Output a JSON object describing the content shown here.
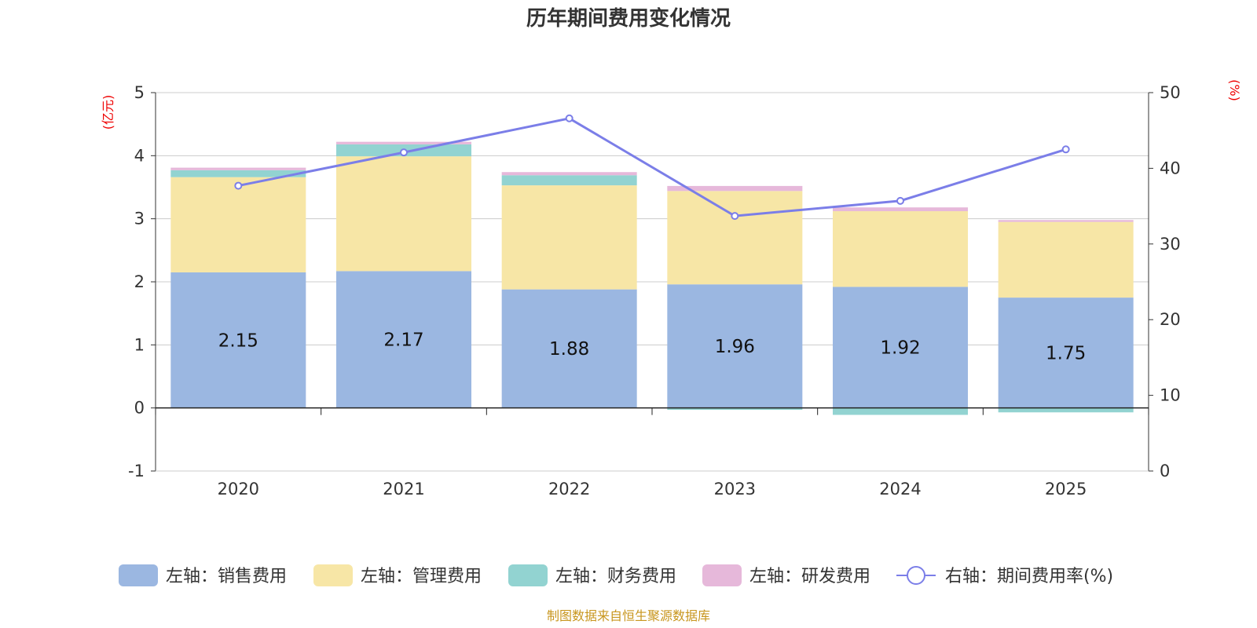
{
  "chart_data": {
    "type": "bar",
    "title": "历年期间费用变化情况",
    "categories": [
      "2020",
      "2021",
      "2022",
      "2023",
      "2024",
      "2025"
    ],
    "left_axis": {
      "unit": "(亿元)",
      "ylim": [
        -1,
        5
      ],
      "ticks": [
        -1,
        0,
        1,
        2,
        3,
        4,
        5
      ]
    },
    "right_axis": {
      "unit": "(%)",
      "ylim": [
        0,
        50
      ],
      "ticks": [
        0,
        10,
        20,
        30,
        40,
        50
      ]
    },
    "series": [
      {
        "name": "左轴：销售费用",
        "type": "bar",
        "color": "#9bb7e1",
        "values": [
          2.15,
          2.17,
          1.88,
          1.96,
          1.92,
          1.75
        ]
      },
      {
        "name": "左轴：管理费用",
        "type": "bar",
        "color": "#f7e6a6",
        "values": [
          1.51,
          1.82,
          1.65,
          1.48,
          1.2,
          1.2
        ]
      },
      {
        "name": "左轴：财务费用",
        "type": "bar",
        "color": "#92d3d1",
        "values": [
          0.11,
          0.19,
          0.16,
          -0.03,
          -0.11,
          -0.07
        ]
      },
      {
        "name": "左轴：研发费用",
        "type": "bar",
        "color": "#e6b8da",
        "values": [
          0.04,
          0.04,
          0.05,
          0.08,
          0.06,
          0.03
        ]
      },
      {
        "name": "右轴：期间费用率(%)",
        "type": "line",
        "color": "#7b7ee8",
        "axis": "right",
        "values": [
          37.7,
          42.1,
          46.6,
          33.7,
          35.7,
          42.5
        ]
      }
    ],
    "data_labels": [
      "2.15",
      "2.17",
      "1.88",
      "1.96",
      "1.92",
      "1.75"
    ],
    "grid": true,
    "legend": "bottom-center"
  },
  "source": "制图数据来自恒生聚源数据库"
}
